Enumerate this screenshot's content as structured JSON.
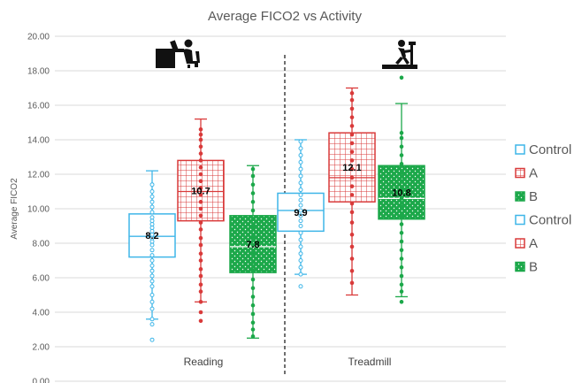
{
  "chart_data": {
    "type": "box",
    "title": "Average FICO2 vs Activity",
    "ylabel": "Average FICO2",
    "xlabel": "",
    "ylim": [
      0,
      20
    ],
    "yticks": [
      "0.00",
      "2.00",
      "4.00",
      "6.00",
      "8.00",
      "10.00",
      "12.00",
      "14.00",
      "16.00",
      "18.00",
      "20.00"
    ],
    "grid": true,
    "legend_position": "right",
    "categories": [
      "Reading",
      "Treadmill"
    ],
    "category_icons": [
      "person-reading-at-desk-icon",
      "person-on-treadmill-icon"
    ],
    "divider": "dashed vertical line between categories",
    "series": [
      {
        "name": "Control",
        "pattern": "open",
        "color": "#3fb6e8",
        "category": "Reading",
        "whisker_low": 3.6,
        "q1": 7.2,
        "median": 8.4,
        "q3": 9.7,
        "whisker_high": 12.2,
        "mean_label": "8.2",
        "points": [
          3.6,
          4.2,
          4.6,
          5.0,
          5.5,
          5.8,
          6.1,
          6.4,
          6.7,
          7.0,
          7.3,
          7.6,
          7.9,
          8.1,
          8.3,
          8.5,
          8.7,
          8.9,
          9.1,
          9.3,
          9.5,
          9.8,
          10.1,
          10.4,
          10.7,
          11.0,
          11.4
        ],
        "outliers": [
          3.3,
          2.4
        ]
      },
      {
        "name": "A",
        "pattern": "grid",
        "color": "#d93a3a",
        "category": "Reading",
        "whisker_low": 4.6,
        "q1": 9.3,
        "median": 11.0,
        "q3": 12.8,
        "whisker_high": 15.2,
        "mean_label": "10.7",
        "points": [
          4.6,
          5.2,
          5.6,
          6.1,
          6.5,
          7.0,
          7.4,
          7.9,
          8.3,
          8.8,
          9.2,
          9.6,
          10.0,
          10.4,
          10.8,
          11.2,
          11.6,
          12.0,
          12.4,
          12.8,
          13.2,
          13.6,
          14.0,
          14.3,
          14.6
        ],
        "outliers": [
          4.0,
          3.5
        ]
      },
      {
        "name": "B",
        "pattern": "dotted",
        "color": "#1ca84a",
        "category": "Reading",
        "whisker_low": 2.5,
        "q1": 6.3,
        "median": 7.8,
        "q3": 9.6,
        "whisker_high": 12.5,
        "mean_label": "7.8",
        "points": [
          2.6,
          3.0,
          3.4,
          3.9,
          4.4,
          4.9,
          5.4,
          5.9,
          6.4,
          6.9,
          7.4,
          7.9,
          8.4,
          8.9,
          9.4,
          9.9,
          10.4,
          10.9,
          11.4,
          11.9,
          12.3
        ],
        "outliers": []
      },
      {
        "name": "Control",
        "pattern": "open",
        "color": "#3fb6e8",
        "category": "Treadmill",
        "whisker_low": 6.2,
        "q1": 8.7,
        "median": 9.9,
        "q3": 10.9,
        "whisker_high": 14.0,
        "mean_label": "9.9",
        "points": [
          6.2,
          6.6,
          7.0,
          7.4,
          7.8,
          8.2,
          8.6,
          9.0,
          9.3,
          9.6,
          9.9,
          10.2,
          10.5,
          10.8,
          11.1,
          11.5,
          11.9,
          12.3,
          12.7,
          13.1,
          13.5,
          13.9
        ],
        "outliers": [
          5.5
        ]
      },
      {
        "name": "A",
        "pattern": "grid",
        "color": "#d93a3a",
        "category": "Treadmill",
        "whisker_low": 5.0,
        "q1": 10.4,
        "median": 11.8,
        "q3": 14.4,
        "whisker_high": 17.0,
        "mean_label": "12.1",
        "points": [
          5.7,
          6.4,
          7.1,
          7.8,
          8.5,
          9.2,
          9.8,
          10.3,
          10.8,
          11.3,
          11.8,
          12.3,
          12.8,
          13.3,
          13.8,
          14.3,
          14.8,
          15.3,
          15.8,
          16.3,
          16.7
        ],
        "outliers": []
      },
      {
        "name": "B",
        "pattern": "dotted",
        "color": "#1ca84a",
        "category": "Treadmill",
        "whisker_low": 4.9,
        "q1": 9.4,
        "median": 10.6,
        "q3": 12.5,
        "whisker_high": 16.1,
        "mean_label": "10.8",
        "points": [
          5.2,
          5.6,
          6.1,
          6.6,
          7.1,
          7.6,
          8.1,
          8.6,
          9.1,
          9.6,
          10.1,
          10.6,
          11.1,
          11.6,
          12.1,
          12.6,
          13.1,
          13.6,
          14.1,
          14.4
        ],
        "outliers": [
          4.6,
          17.6
        ]
      }
    ],
    "legend": [
      {
        "label": "Control",
        "pattern": "open",
        "color": "#3fb6e8"
      },
      {
        "label": "A",
        "pattern": "grid",
        "color": "#d93a3a"
      },
      {
        "label": "B",
        "pattern": "dotted",
        "color": "#1ca84a"
      },
      {
        "label": "Control",
        "pattern": "open",
        "color": "#3fb6e8"
      },
      {
        "label": "A",
        "pattern": "grid",
        "color": "#d93a3a"
      },
      {
        "label": "B",
        "pattern": "dotted",
        "color": "#1ca84a"
      }
    ]
  }
}
